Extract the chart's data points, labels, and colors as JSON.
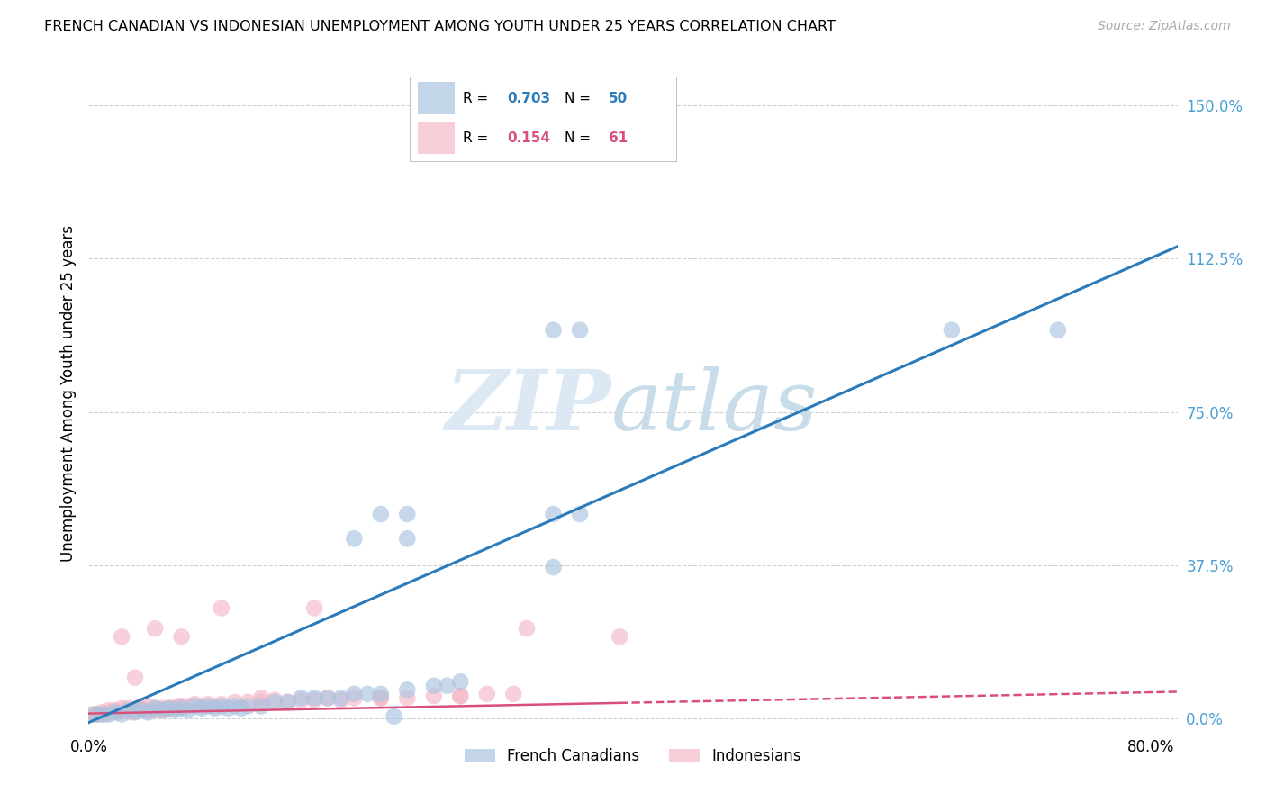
{
  "title": "FRENCH CANADIAN VS INDONESIAN UNEMPLOYMENT AMONG YOUTH UNDER 25 YEARS CORRELATION CHART",
  "source": "Source: ZipAtlas.com",
  "ylabel": "Unemployment Among Youth under 25 years",
  "ytick_labels": [
    "0.0%",
    "37.5%",
    "75.0%",
    "112.5%",
    "150.0%"
  ],
  "ytick_values": [
    0.0,
    0.375,
    0.75,
    1.125,
    1.5
  ],
  "xtick_values": [
    0.0,
    0.2,
    0.4,
    0.6,
    0.8
  ],
  "xtick_labels": [
    "0.0%",
    "",
    "",
    "",
    "80.0%"
  ],
  "xlim": [
    0.0,
    0.82
  ],
  "ylim": [
    -0.03,
    1.62
  ],
  "legend_blue_R": "0.703",
  "legend_blue_N": "50",
  "legend_pink_R": "0.154",
  "legend_pink_N": "61",
  "label_french": "French Canadians",
  "label_indonesian": "Indonesians",
  "blue_scatter_color": "#aac4e0",
  "pink_scatter_color": "#f4b8c8",
  "blue_line_color": "#2b7bba",
  "pink_line_color": "#d94f7a",
  "grid_color": "#d0d0d0",
  "right_tick_color": "#4a9fd4",
  "blue_line_slope": 1.42,
  "blue_line_intercept": -0.01,
  "pink_line_slope": 0.065,
  "pink_line_intercept": 0.012,
  "blue_scatter_x": [
    0.005,
    0.01,
    0.015,
    0.02,
    0.025,
    0.03,
    0.035,
    0.04,
    0.045,
    0.05,
    0.055,
    0.06,
    0.065,
    0.07,
    0.075,
    0.08,
    0.085,
    0.09,
    0.095,
    0.1,
    0.105,
    0.11,
    0.115,
    0.12,
    0.13,
    0.14,
    0.15,
    0.16,
    0.17,
    0.18,
    0.19,
    0.2,
    0.21,
    0.22,
    0.24,
    0.26,
    0.27,
    0.28,
    0.22,
    0.24,
    0.35,
    0.37,
    0.35,
    0.37,
    0.2,
    0.24,
    0.35,
    0.65,
    0.73,
    0.23
  ],
  "blue_scatter_y": [
    0.01,
    0.01,
    0.01,
    0.015,
    0.01,
    0.02,
    0.015,
    0.02,
    0.015,
    0.025,
    0.02,
    0.025,
    0.02,
    0.025,
    0.02,
    0.03,
    0.025,
    0.03,
    0.025,
    0.03,
    0.025,
    0.03,
    0.025,
    0.03,
    0.03,
    0.04,
    0.04,
    0.05,
    0.05,
    0.05,
    0.05,
    0.06,
    0.06,
    0.06,
    0.07,
    0.08,
    0.08,
    0.09,
    0.5,
    0.5,
    0.5,
    0.5,
    0.95,
    0.95,
    0.44,
    0.44,
    0.37,
    0.95,
    0.95,
    0.005
  ],
  "pink_scatter_x": [
    0.002,
    0.005,
    0.007,
    0.01,
    0.012,
    0.015,
    0.017,
    0.02,
    0.022,
    0.025,
    0.027,
    0.03,
    0.032,
    0.035,
    0.037,
    0.04,
    0.042,
    0.045,
    0.048,
    0.05,
    0.052,
    0.055,
    0.057,
    0.06,
    0.063,
    0.065,
    0.068,
    0.07,
    0.075,
    0.08,
    0.085,
    0.09,
    0.095,
    0.1,
    0.11,
    0.12,
    0.13,
    0.14,
    0.15,
    0.16,
    0.17,
    0.18,
    0.19,
    0.2,
    0.22,
    0.24,
    0.26,
    0.28,
    0.3,
    0.32,
    0.025,
    0.035,
    0.05,
    0.07,
    0.1,
    0.13,
    0.17,
    0.22,
    0.28,
    0.33,
    0.4
  ],
  "pink_scatter_y": [
    0.01,
    0.01,
    0.01,
    0.015,
    0.01,
    0.02,
    0.015,
    0.02,
    0.015,
    0.025,
    0.02,
    0.025,
    0.015,
    0.02,
    0.025,
    0.025,
    0.02,
    0.03,
    0.02,
    0.025,
    0.02,
    0.025,
    0.02,
    0.025,
    0.025,
    0.025,
    0.03,
    0.03,
    0.03,
    0.035,
    0.03,
    0.035,
    0.03,
    0.035,
    0.04,
    0.04,
    0.04,
    0.045,
    0.04,
    0.045,
    0.045,
    0.05,
    0.045,
    0.05,
    0.05,
    0.05,
    0.055,
    0.055,
    0.06,
    0.06,
    0.2,
    0.1,
    0.22,
    0.2,
    0.27,
    0.05,
    0.27,
    0.05,
    0.055,
    0.22,
    0.2
  ]
}
